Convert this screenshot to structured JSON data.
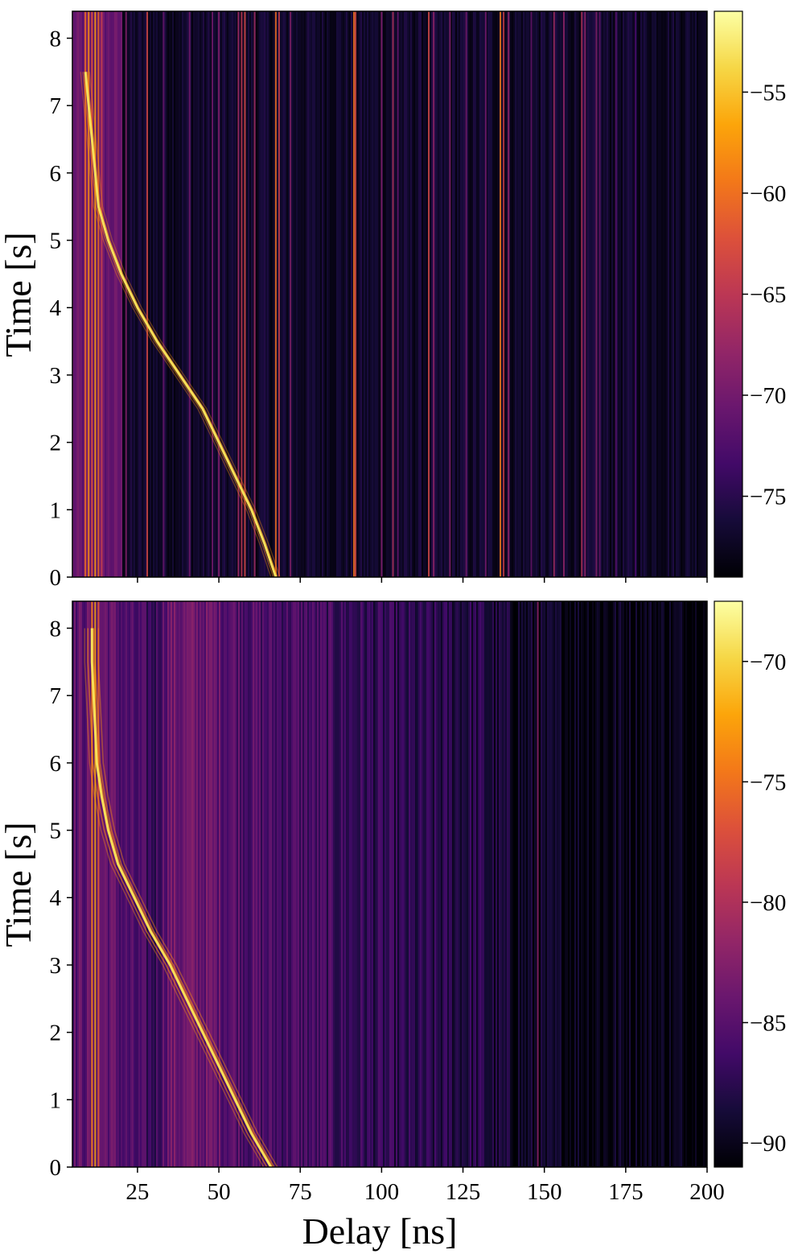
{
  "chart_data": [
    {
      "type": "heatmap",
      "title": "",
      "xlabel": "",
      "ylabel": "Time [s]",
      "xlim": [
        5,
        200
      ],
      "ylim": [
        0,
        8.4
      ],
      "xticks": [
        25,
        50,
        75,
        100,
        125,
        150,
        175,
        200
      ],
      "xtick_labels_shown": false,
      "yticks": [
        0,
        1,
        2,
        3,
        4,
        5,
        6,
        7,
        8
      ],
      "ytick_labels": [
        "0",
        "1",
        "2",
        "3",
        "4",
        "5",
        "6",
        "7",
        "8"
      ],
      "colorbar": {
        "ticks": [
          -55,
          -60,
          -65,
          -70,
          -75
        ],
        "tick_labels": [
          "−55",
          "−60",
          "−65",
          "−70",
          "−75"
        ],
        "range": [
          -79,
          -51
        ],
        "colormap": "inferno"
      },
      "features": {
        "trajectory": [
          [
            67.5,
            0.0
          ],
          [
            64,
            0.5
          ],
          [
            60,
            1.0
          ],
          [
            55,
            1.5
          ],
          [
            50,
            2.0
          ],
          [
            45,
            2.5
          ],
          [
            38,
            3.0
          ],
          [
            31,
            3.5
          ],
          [
            25,
            4.0
          ],
          [
            20,
            4.5
          ],
          [
            16,
            5.0
          ],
          [
            13,
            5.5
          ],
          [
            12,
            6.0
          ],
          [
            11,
            6.5
          ],
          [
            10,
            7.0
          ],
          [
            9,
            7.5
          ]
        ],
        "vertical_lines": [
          [
            9,
            -60
          ],
          [
            10,
            -58
          ],
          [
            11,
            -62
          ],
          [
            12,
            -57
          ],
          [
            13,
            -60
          ],
          [
            14,
            -64
          ],
          [
            21.5,
            -69
          ],
          [
            28,
            -63
          ],
          [
            33,
            -71
          ],
          [
            41,
            -70
          ],
          [
            48,
            -70
          ],
          [
            50,
            -69
          ],
          [
            56,
            -67
          ],
          [
            57,
            -65
          ],
          [
            58,
            -63
          ],
          [
            61,
            -67
          ],
          [
            67.5,
            -60
          ],
          [
            68.5,
            -64
          ],
          [
            72,
            -69
          ],
          [
            91.5,
            -60
          ],
          [
            92,
            -63
          ],
          [
            100,
            -69
          ],
          [
            103.5,
            -66
          ],
          [
            105,
            -71
          ],
          [
            114.5,
            -63
          ],
          [
            116,
            -68
          ],
          [
            121,
            -69
          ],
          [
            126,
            -70
          ],
          [
            132,
            -70
          ],
          [
            136.5,
            -59
          ],
          [
            137.5,
            -64
          ],
          [
            139,
            -68
          ],
          [
            146,
            -71
          ],
          [
            153,
            -67
          ],
          [
            156,
            -68
          ],
          [
            161.5,
            -66
          ],
          [
            162.5,
            -68
          ],
          [
            166,
            -69
          ],
          [
            167,
            -71
          ],
          [
            172,
            -72
          ],
          [
            178,
            -73
          ]
        ],
        "background_level": -77
      }
    },
    {
      "type": "heatmap",
      "title": "",
      "xlabel": "Delay [ns]",
      "ylabel": "Time [s]",
      "xlim": [
        5,
        200
      ],
      "ylim": [
        0,
        8.4
      ],
      "xticks": [
        25,
        50,
        75,
        100,
        125,
        150,
        175,
        200
      ],
      "xtick_labels": [
        "25",
        "50",
        "75",
        "100",
        "125",
        "150",
        "175",
        "200"
      ],
      "yticks": [
        0,
        1,
        2,
        3,
        4,
        5,
        6,
        7,
        8
      ],
      "ytick_labels": [
        "0",
        "1",
        "2",
        "3",
        "4",
        "5",
        "6",
        "7",
        "8"
      ],
      "colorbar": {
        "ticks": [
          -70,
          -75,
          -80,
          -85,
          -90
        ],
        "tick_labels": [
          "−70",
          "−75",
          "−80",
          "−85",
          "−90"
        ],
        "range": [
          -91,
          -67.5
        ],
        "colormap": "inferno"
      },
      "features": {
        "trajectory": [
          [
            66,
            0.0
          ],
          [
            60,
            0.5
          ],
          [
            55,
            1.0
          ],
          [
            50,
            1.5
          ],
          [
            45,
            2.0
          ],
          [
            40,
            2.5
          ],
          [
            35,
            3.0
          ],
          [
            29,
            3.5
          ],
          [
            24,
            4.0
          ],
          [
            19,
            4.5
          ],
          [
            16,
            5.0
          ],
          [
            14,
            5.5
          ],
          [
            12.5,
            6.0
          ],
          [
            12,
            6.5
          ],
          [
            11.5,
            7.0
          ],
          [
            11,
            7.5
          ],
          [
            11,
            8.0
          ]
        ],
        "vertical_lines": [
          [
            11,
            -74
          ],
          [
            12,
            -72
          ],
          [
            13,
            -76
          ],
          [
            148,
            -82
          ]
        ],
        "background_profile": [
          [
            5,
            -85
          ],
          [
            15,
            -84
          ],
          [
            22,
            -86
          ],
          [
            30,
            -87
          ],
          [
            34,
            -84
          ],
          [
            45,
            -84
          ],
          [
            55,
            -85
          ],
          [
            65,
            -86
          ],
          [
            75,
            -86
          ],
          [
            90,
            -87
          ],
          [
            110,
            -88
          ],
          [
            130,
            -88
          ],
          [
            135,
            -89
          ],
          [
            150,
            -90
          ],
          [
            170,
            -90
          ],
          [
            200,
            -90.5
          ]
        ]
      }
    }
  ]
}
